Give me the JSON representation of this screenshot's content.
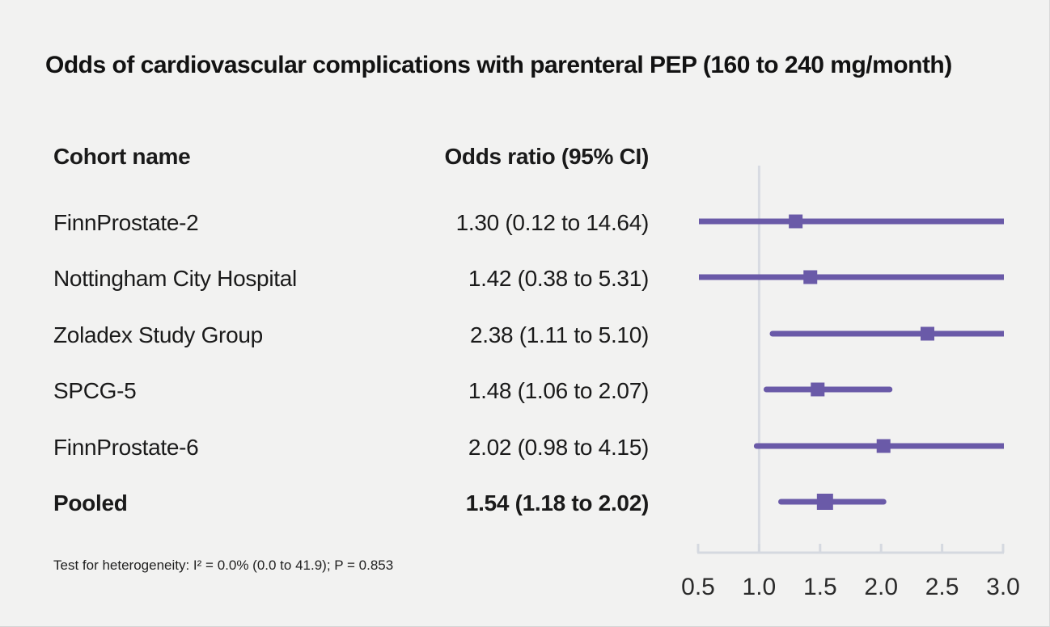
{
  "title": "Odds of cardiovascular complications with parenteral PEP (160 to 240 mg/month)",
  "table": {
    "col1_header": "Cohort name",
    "col2_header": "Odds ratio (95% CI)",
    "rows": [
      {
        "name": "FinnProstate-2",
        "or_text": "1.30 (0.12 to 14.64)",
        "bold": false
      },
      {
        "name": "Nottingham City Hospital",
        "or_text": "1.42 (0.38 to 5.31)",
        "bold": false
      },
      {
        "name": "Zoladex Study Group",
        "or_text": "2.38 (1.11 to 5.10)",
        "bold": false
      },
      {
        "name": "SPCG-5",
        "or_text": "1.48 (1.06 to 2.07)",
        "bold": false
      },
      {
        "name": "FinnProstate-6",
        "or_text": "2.02 (0.98 to 4.15)",
        "bold": false
      },
      {
        "name": "Pooled",
        "or_text": "1.54 (1.18 to 2.02)",
        "bold": true
      }
    ]
  },
  "footnote": "Test for heterogeneity: I² = 0.0% (0.0 to 41.9); P = 0.853",
  "chart_data": {
    "type": "forest",
    "title": "Odds of cardiovascular complications with parenteral PEP (160 to 240 mg/month)",
    "xlim": [
      0.5,
      3.0
    ],
    "x_ticks": [
      0.5,
      1.0,
      1.5,
      2.0,
      2.5,
      3.0
    ],
    "x_tick_labels": [
      "0.5",
      "1.0",
      "1.5",
      "2.0",
      "2.5",
      "3.0"
    ],
    "reference_line_x": 1.0,
    "scale": "linear",
    "grid": false,
    "series": [
      {
        "label": "FinnProstate-2",
        "odds_ratio": 1.3,
        "ci_low": 0.12,
        "ci_high": 14.64,
        "pooled": false
      },
      {
        "label": "Nottingham City Hospital",
        "odds_ratio": 1.42,
        "ci_low": 0.38,
        "ci_high": 5.31,
        "pooled": false
      },
      {
        "label": "Zoladex Study Group",
        "odds_ratio": 2.38,
        "ci_low": 1.11,
        "ci_high": 5.1,
        "pooled": false
      },
      {
        "label": "SPCG-5",
        "odds_ratio": 1.48,
        "ci_low": 1.06,
        "ci_high": 2.07,
        "pooled": false
      },
      {
        "label": "FinnProstate-6",
        "odds_ratio": 2.02,
        "ci_low": 0.98,
        "ci_high": 4.15,
        "pooled": false
      },
      {
        "label": "Pooled",
        "odds_ratio": 1.54,
        "ci_low": 1.18,
        "ci_high": 2.02,
        "pooled": true
      }
    ],
    "colors": {
      "marker": "#6a5aa8",
      "axis": "#d5d9e0",
      "reference_line": "#d8dbe2",
      "background": "#f2f2f1",
      "text": "#1a1a1a",
      "axis_label": "#2b2b2b"
    }
  }
}
